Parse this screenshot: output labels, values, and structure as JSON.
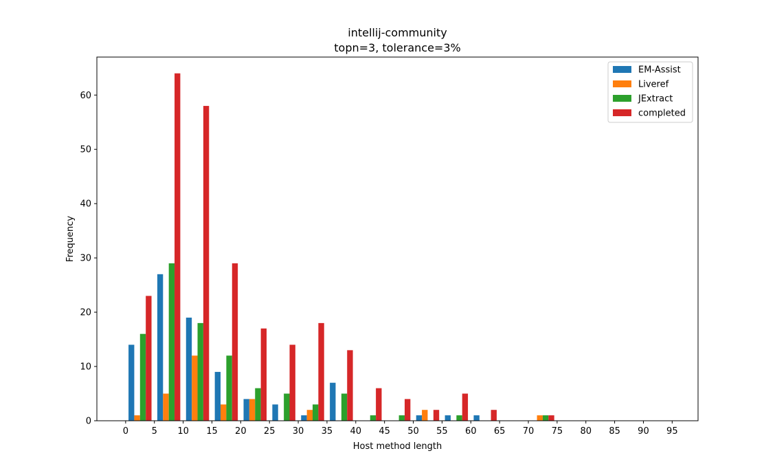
{
  "chart_data": {
    "type": "bar",
    "title": "intellij-community",
    "subtitle": "topn=3, tolerance=3%",
    "xlabel": "Host method length",
    "ylabel": "Frequency",
    "xlim": [
      -5,
      99.5
    ],
    "ylim": [
      0,
      67
    ],
    "xticks": [
      0,
      5,
      10,
      15,
      20,
      25,
      30,
      35,
      40,
      45,
      50,
      55,
      60,
      65,
      70,
      75,
      80,
      85,
      90,
      95
    ],
    "yticks": [
      0,
      10,
      20,
      30,
      40,
      50,
      60
    ],
    "legend_position": "top-right",
    "bin_starts": [
      0,
      5,
      10,
      15,
      20,
      25,
      30,
      35,
      40,
      45,
      50,
      55,
      60,
      65,
      70
    ],
    "bin_width": 5,
    "series": [
      {
        "name": "EM-Assist",
        "color": "#1f77b4",
        "values": [
          14,
          27,
          19,
          9,
          4,
          3,
          1,
          7,
          0,
          0,
          1,
          1,
          1,
          0,
          0
        ]
      },
      {
        "name": "Liveref",
        "color": "#ff7f0e",
        "values": [
          1,
          5,
          12,
          3,
          4,
          0,
          2,
          0,
          0,
          0,
          2,
          0,
          0,
          0,
          1
        ]
      },
      {
        "name": "JExtract",
        "color": "#2ca02c",
        "values": [
          16,
          29,
          18,
          12,
          6,
          5,
          3,
          5,
          1,
          1,
          0,
          1,
          0,
          0,
          1
        ]
      },
      {
        "name": "completed",
        "color": "#d62728",
        "values": [
          23,
          64,
          58,
          29,
          17,
          14,
          18,
          13,
          6,
          4,
          2,
          5,
          2,
          0,
          1
        ]
      }
    ]
  }
}
